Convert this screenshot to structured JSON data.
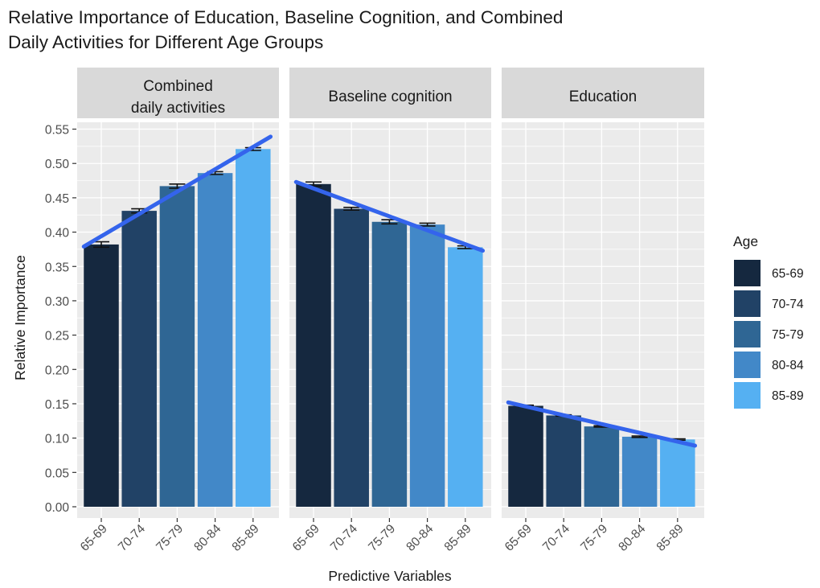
{
  "chart_data": {
    "type": "bar",
    "title_lines": [
      "Relative Importance of Education, Baseline Cognition, and Combined",
      "Daily Activities for Different Age Groups"
    ],
    "xlabel": "Predictive Variables",
    "ylabel": "Relative Importance",
    "ylim": [
      0,
      0.56
    ],
    "yticks": [
      "0.00",
      "0.05",
      "0.10",
      "0.15",
      "0.20",
      "0.25",
      "0.30",
      "0.35",
      "0.40",
      "0.45",
      "0.50",
      "0.55"
    ],
    "categories": [
      "65-69",
      "70-74",
      "75-79",
      "80-84",
      "85-89"
    ],
    "legend": {
      "title": "Age",
      "position": "right",
      "entries": [
        "65-69",
        "70-74",
        "75-79",
        "80-84",
        "85-89"
      ]
    },
    "colors": {
      "series": [
        "#15283f",
        "#214266",
        "#2f6694",
        "#4288c8",
        "#55b0f2"
      ],
      "trend": "#3464ec",
      "panel_bg": "#ebebeb",
      "strip_bg": "#d9d9d9",
      "grid": "#ffffff",
      "text": "#1a1a1a",
      "axis_text": "#4d4d4d"
    },
    "panels": [
      {
        "strip_lines": [
          "Combined",
          "daily activities"
        ],
        "values": [
          0.382,
          0.431,
          0.467,
          0.486,
          0.521
        ],
        "errors": [
          0.004,
          0.003,
          0.003,
          0.002,
          0.002
        ],
        "trend": [
          0.379,
          0.539
        ]
      },
      {
        "strip_lines": [
          "Baseline cognition"
        ],
        "values": [
          0.47,
          0.434,
          0.415,
          0.411,
          0.378
        ],
        "errors": [
          0.003,
          0.002,
          0.003,
          0.002,
          0.002
        ],
        "trend": [
          0.473,
          0.373
        ]
      },
      {
        "strip_lines": [
          "Education"
        ],
        "values": [
          0.147,
          0.133,
          0.117,
          0.102,
          0.098
        ],
        "errors": [
          0.001,
          0.001,
          0.001,
          0.001,
          0.001
        ],
        "trend": [
          0.152,
          0.089
        ]
      }
    ]
  }
}
